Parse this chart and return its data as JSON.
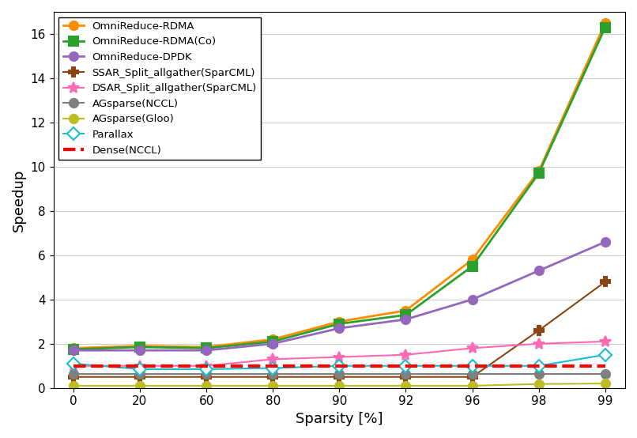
{
  "xlabel": "Sparsity [%]",
  "ylabel": "Speedup",
  "x_labels": [
    "0",
    "20",
    "60",
    "80",
    "90",
    "92",
    "96",
    "98",
    "99"
  ],
  "series": {
    "OmniReduce-RDMA": {
      "y": [
        1.8,
        1.9,
        1.85,
        2.2,
        3.0,
        3.5,
        5.8,
        9.8,
        16.5
      ],
      "color": "#FF8C00",
      "marker": "o",
      "linestyle": "-",
      "linewidth": 2.0,
      "markersize": 8,
      "mfc": "#FF8C00",
      "mec": "#FF8C00"
    },
    "OmniReduce-RDMA(Co)": {
      "y": [
        1.75,
        1.85,
        1.8,
        2.1,
        2.9,
        3.3,
        5.5,
        9.7,
        16.3
      ],
      "color": "#2CA02C",
      "marker": "s",
      "linestyle": "-",
      "linewidth": 2.0,
      "markersize": 8,
      "mfc": "#2CA02C",
      "mec": "#2CA02C"
    },
    "OmniReduce-DPDK": {
      "y": [
        1.7,
        1.7,
        1.7,
        2.0,
        2.7,
        3.1,
        4.0,
        5.3,
        6.6
      ],
      "color": "#9467BD",
      "marker": "o",
      "linestyle": "-",
      "linewidth": 2.0,
      "markersize": 8,
      "mfc": "#9467BD",
      "mec": "#9467BD"
    },
    "SSAR_Split_allgather(SparCML)": {
      "y": [
        0.5,
        0.5,
        0.5,
        0.5,
        0.5,
        0.5,
        0.5,
        2.6,
        4.8
      ],
      "color": "#8B4513",
      "marker": "P",
      "linestyle": "-",
      "linewidth": 1.5,
      "markersize": 8,
      "mfc": "#8B4513",
      "mec": "#8B4513"
    },
    "DSAR_Split_allgather(SparCML)": {
      "y": [
        1.0,
        1.0,
        1.0,
        1.3,
        1.4,
        1.5,
        1.8,
        2.0,
        2.1
      ],
      "color": "#FF69B4",
      "marker": "*",
      "linestyle": "-",
      "linewidth": 1.5,
      "markersize": 10,
      "mfc": "#FF69B4",
      "mec": "#FF69B4"
    },
    "AGsparse(NCCL)": {
      "y": [
        0.65,
        0.65,
        0.65,
        0.65,
        0.65,
        0.65,
        0.65,
        0.65,
        0.65
      ],
      "color": "#7F7F7F",
      "marker": "o",
      "linestyle": "-",
      "linewidth": 1.5,
      "markersize": 8,
      "mfc": "#7F7F7F",
      "mec": "#7F7F7F"
    },
    "AGsparse(Gloo)": {
      "y": [
        0.1,
        0.1,
        0.1,
        0.1,
        0.1,
        0.1,
        0.1,
        0.18,
        0.2
      ],
      "color": "#BCBD22",
      "marker": "o",
      "linestyle": "-",
      "linewidth": 1.5,
      "markersize": 8,
      "mfc": "#BCBD22",
      "mec": "#BCBD22"
    },
    "Parallax": {
      "y": [
        1.1,
        0.85,
        0.85,
        0.9,
        1.0,
        1.0,
        1.0,
        1.0,
        1.5
      ],
      "color": "#17BECF",
      "marker": "D",
      "linestyle": "-",
      "linewidth": 1.5,
      "markersize": 8,
      "mfc": "white",
      "mec": "#17BECF"
    },
    "Dense(NCCL)": {
      "y": [
        1.0,
        1.0,
        1.0,
        1.0,
        1.0,
        1.0,
        1.0,
        1.0,
        1.0
      ],
      "color": "#FF0000",
      "marker": null,
      "linestyle": "--",
      "linewidth": 3.0,
      "markersize": 0,
      "mfc": null,
      "mec": null
    }
  },
  "ylim": [
    0,
    17
  ],
  "yticks": [
    0,
    2,
    4,
    6,
    8,
    10,
    12,
    14,
    16
  ],
  "legend_loc": "upper left",
  "grid": true,
  "background_color": "#ffffff"
}
